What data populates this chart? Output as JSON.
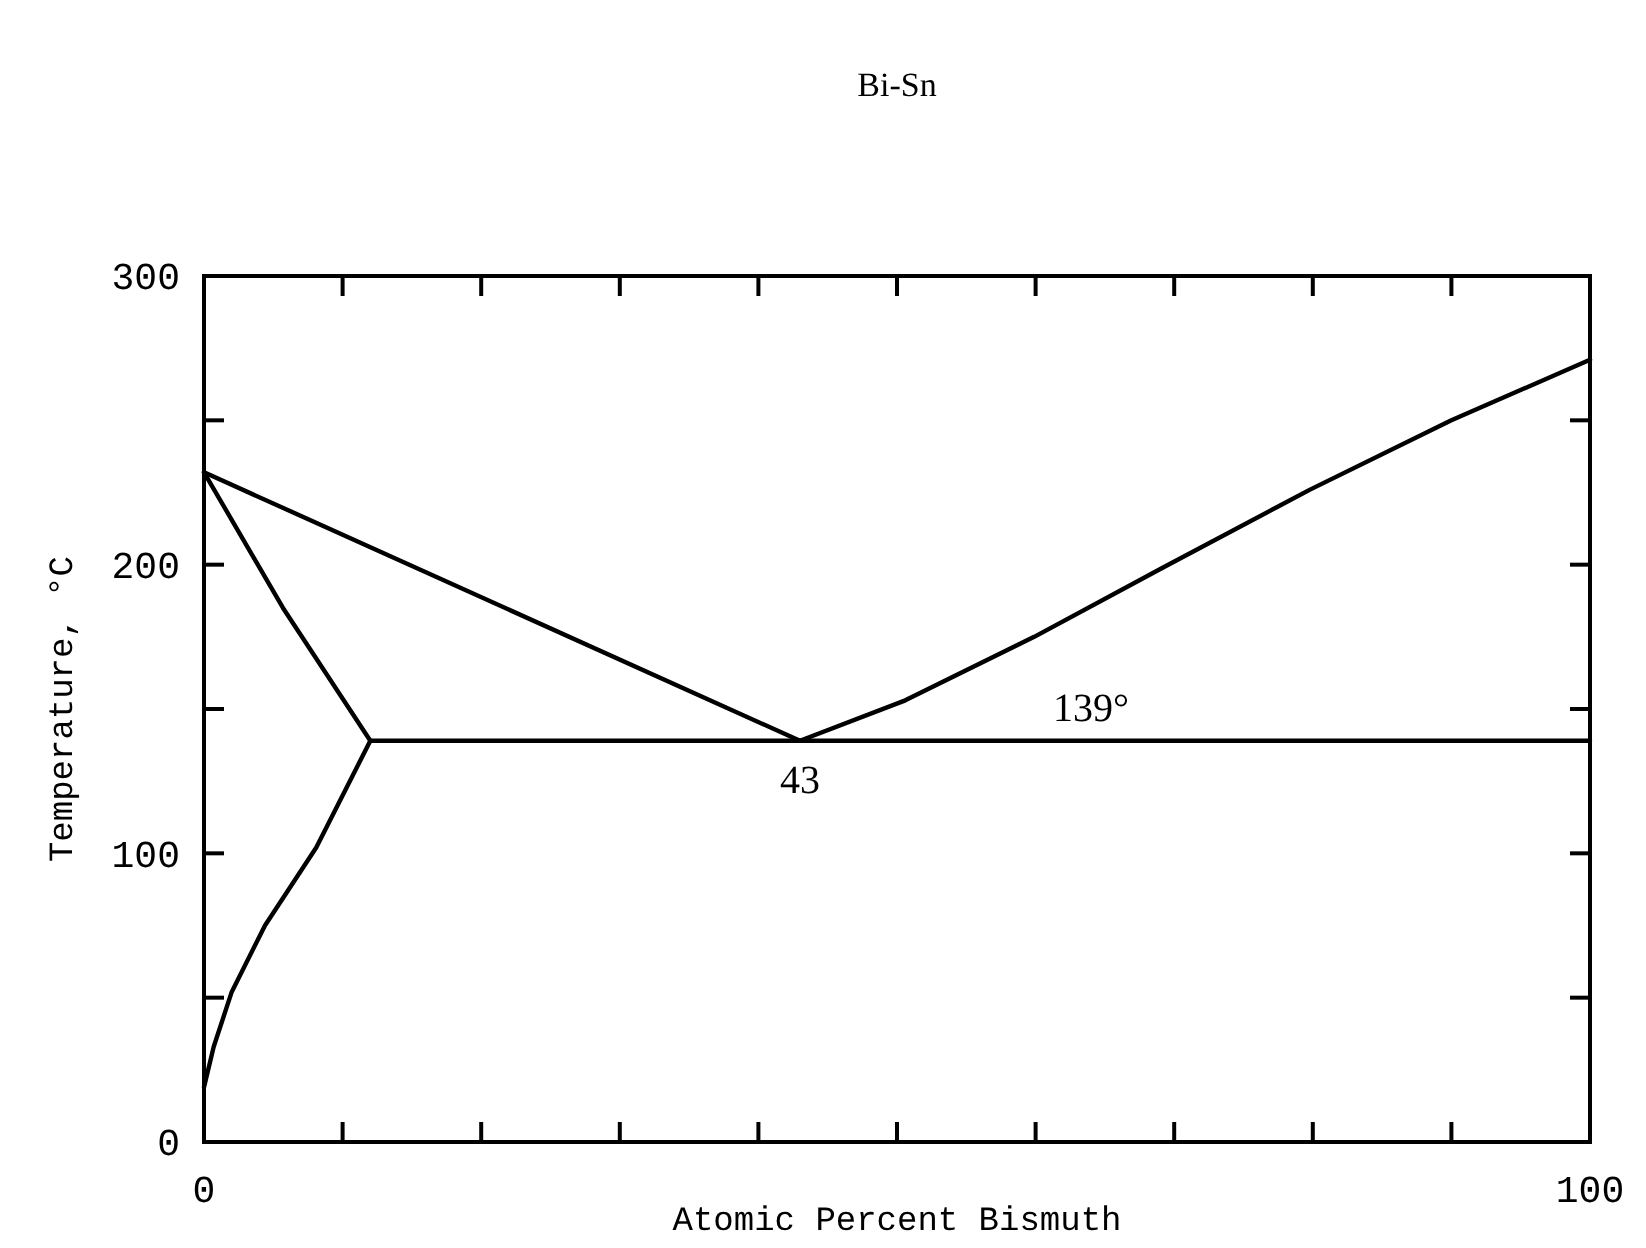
{
  "chart_data": {
    "type": "line",
    "title": "Bi-Sn",
    "xlabel": "Atomic Percent Bismuth",
    "ylabel": "Temperature, °C",
    "xlim": [
      0,
      100
    ],
    "ylim": [
      0,
      300
    ],
    "xticks": [
      0,
      {
        "value": 10,
        "label": null
      },
      {
        "value": 20,
        "label": null
      },
      {
        "value": 30,
        "label": null
      },
      {
        "value": 40,
        "label": null
      },
      {
        "value": 50,
        "label": null
      },
      {
        "value": 60,
        "label": null
      },
      {
        "value": 70,
        "label": null
      },
      {
        "value": 80,
        "label": null
      },
      {
        "value": 90,
        "label": null
      },
      100
    ],
    "yticks": [
      0,
      {
        "value": 50,
        "label": null
      },
      100,
      {
        "value": 150,
        "label": null
      },
      200,
      {
        "value": 250,
        "label": null
      },
      300
    ],
    "marker": "none",
    "line_style": "solid",
    "grid": false,
    "series": [
      {
        "color": "#000000",
        "x": [
          0,
          43
        ],
        "values": [
          232,
          139
        ]
      },
      {
        "color": "#000000",
        "x": [
          0,
          5.7,
          12
        ],
        "values": [
          232,
          185,
          139
        ]
      },
      {
        "color": "#000000",
        "x": [
          0,
          0.7,
          2,
          4.4,
          8.1,
          12
        ],
        "values": [
          19,
          33,
          52,
          75,
          102,
          139
        ]
      },
      {
        "color": "#000000",
        "x": [
          12,
          100
        ],
        "values": [
          139,
          139
        ]
      },
      {
        "color": "#000000",
        "x": [
          43,
          50.6,
          59.9,
          69.2,
          79.8,
          90,
          100
        ],
        "values": [
          139,
          153,
          175,
          199,
          226,
          250,
          271
        ]
      }
    ],
    "annotations": [
      {
        "text": "43",
        "x": 43,
        "y": 139
      },
      {
        "text": "139°",
        "x": 64,
        "y": 139
      }
    ]
  }
}
